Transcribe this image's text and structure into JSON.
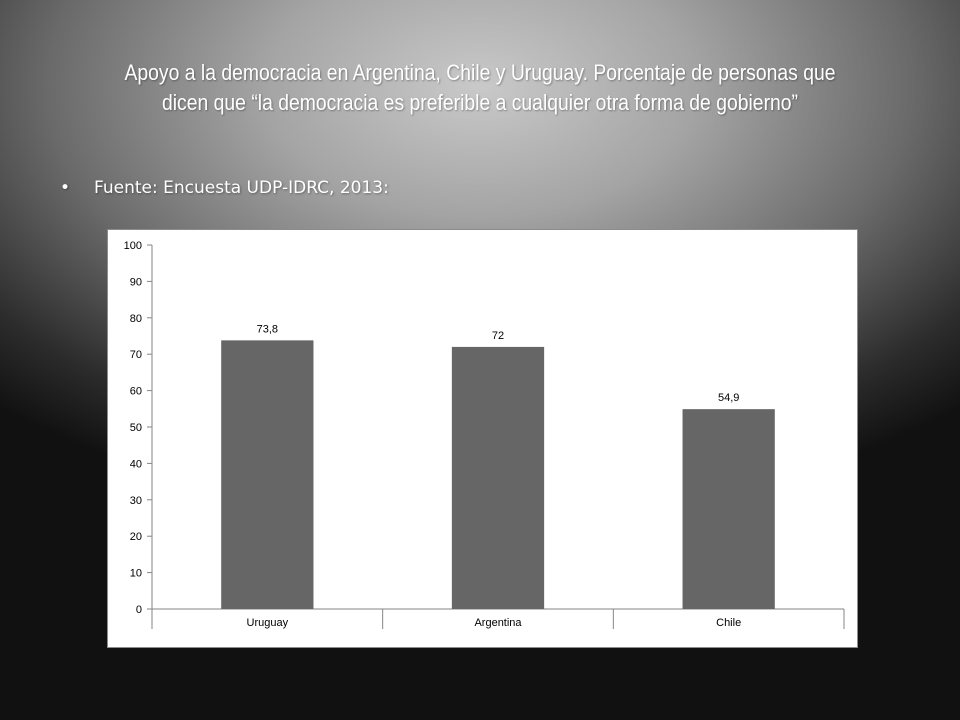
{
  "slide": {
    "title": "Apoyo a la democracia en Argentina, Chile y Uruguay. Porcentaje de personas que dicen que “la democracia es preferible a cualquier otra forma de gobierno”",
    "bullet_symbol": "•",
    "bullet_text": "Fuente: Encuesta UDP-IDRC, 2013:"
  },
  "chart_data": {
    "type": "bar",
    "categories": [
      "Uruguay",
      "Argentina",
      "Chile"
    ],
    "values": [
      73.8,
      72,
      54.9
    ],
    "data_labels": [
      "73,8",
      "72",
      "54,9"
    ],
    "yticks": [
      "0",
      "10",
      "20",
      "30",
      "40",
      "50",
      "60",
      "70",
      "80",
      "90",
      "100"
    ],
    "ylim": [
      0,
      100
    ],
    "bar_color": "#666666",
    "grid": false,
    "legend": "none",
    "title": "",
    "xlabel": "",
    "ylabel": ""
  }
}
